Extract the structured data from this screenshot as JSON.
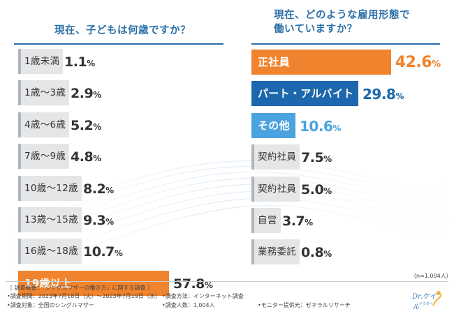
{
  "chart_data": [
    {
      "type": "bar",
      "orientation": "horizontal",
      "title": "現在、子どもは何歳ですか？",
      "unit": "%",
      "categories": [
        "1歳未満",
        "1歳～3歳",
        "4歳～6歳",
        "7歳～9歳",
        "10歳～12歳",
        "13歳～15歳",
        "16歳～18歳",
        "19歳以上"
      ],
      "values": [
        1.1,
        2.9,
        5.2,
        4.8,
        8.2,
        9.3,
        10.7,
        57.8
      ],
      "value_labels": [
        "1.1",
        "2.9",
        "5.2",
        "4.8",
        "8.2",
        "9.3",
        "10.7",
        "57.8"
      ],
      "highlight_index": 7,
      "xlim": [
        0,
        100
      ]
    },
    {
      "type": "bar",
      "orientation": "horizontal",
      "title": "現在、どのような雇用形態で\n働いていますか？",
      "unit": "%",
      "categories": [
        "正社員",
        "パート・アルバイト",
        "その他",
        "契約社員",
        "契約社員",
        "自営",
        "業務委託"
      ],
      "values": [
        42.6,
        29.8,
        10.6,
        7.5,
        5.0,
        3.7,
        0.8
      ],
      "value_labels": [
        "42.6",
        "29.8",
        "10.6",
        "7.5",
        "5.0",
        "3.7",
        "0.8"
      ],
      "xlim": [
        0,
        100
      ]
    }
  ],
  "left_title": "現在、子どもは何歳ですか？",
  "right_title_lines": [
    "現在、どのような雇用形態で",
    "働いていますか？"
  ],
  "sample_size": "（n=1,004人）",
  "footnotes": {
    "overview": "［ 調査概要：「シングルマザーの働き方」に関する調査 ］",
    "period": "•調査期間：2023年7月18日（火）～2023年7月19日（水）",
    "method": "•調査方法：インターネット調査",
    "target": "•調査対象：全国のシングルマザー",
    "count": "•調査人数：1,004人",
    "provider": "•モニター提供元：ゼネラルリサーチ"
  },
  "logo": {
    "main": "Dr.ケイル",
    "sub": "ドクター"
  },
  "colors": {
    "title": "#2d6fa8",
    "orange": "#f0832d",
    "blue_dark": "#1c67ad",
    "blue_light": "#4aa3de",
    "gray_bar": "#e4e6e8"
  }
}
